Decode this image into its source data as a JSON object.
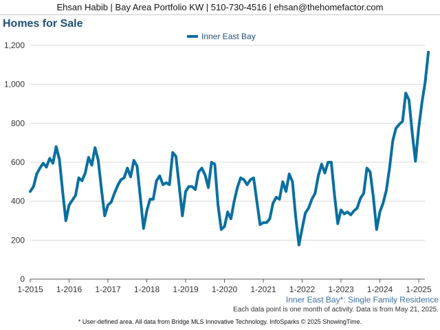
{
  "header": {
    "contact": "Ehsan Habib | Bay Area Portfolio KW | 510-730-4516 | ehsan@thehomefactor.com"
  },
  "colors": {
    "series": "#0a6fa0",
    "title": "#1f4e79",
    "subtitle": "#3a6f9e"
  },
  "chart_data": {
    "type": "line",
    "title": "Homes for Sale",
    "subtitle": "Inner East Bay*: Single Family Residence",
    "note": "Each data point is one month of activity. Data is from May 21, 2025.",
    "footer": "* User-defined area. All data from Bridge MLS Innovative Technology. InfoSparks © 2025 ShowingTime.",
    "legend": "top-center",
    "grid": true,
    "x_start": "2015-01",
    "x_tick_labels": [
      "1-2015",
      "1-2016",
      "1-2017",
      "1-2018",
      "1-2019",
      "1-2020",
      "1-2021",
      "1-2022",
      "1-2023",
      "1-2024",
      "1-2025"
    ],
    "y_ticks": [
      "0",
      "200",
      "400",
      "600",
      "800",
      "1,000",
      "1,200"
    ],
    "ylim": [
      0,
      1200
    ],
    "series": [
      {
        "name": "Inner East Bay",
        "values": [
          450,
          475,
          540,
          570,
          595,
          575,
          620,
          595,
          680,
          615,
          450,
          300,
          380,
          405,
          430,
          520,
          505,
          545,
          625,
          585,
          675,
          610,
          460,
          325,
          380,
          395,
          440,
          480,
          510,
          520,
          570,
          525,
          610,
          580,
          420,
          260,
          350,
          410,
          410,
          505,
          530,
          485,
          495,
          485,
          650,
          630,
          480,
          325,
          450,
          475,
          475,
          460,
          550,
          570,
          535,
          470,
          600,
          590,
          380,
          255,
          270,
          345,
          310,
          400,
          470,
          520,
          510,
          485,
          510,
          520,
          400,
          280,
          290,
          290,
          310,
          390,
          420,
          410,
          500,
          450,
          540,
          500,
          320,
          175,
          260,
          340,
          365,
          410,
          440,
          530,
          590,
          545,
          600,
          600,
          430,
          285,
          355,
          335,
          345,
          330,
          350,
          365,
          415,
          440,
          570,
          550,
          420,
          255,
          345,
          390,
          455,
          570,
          710,
          775,
          795,
          810,
          955,
          920,
          750,
          605,
          775,
          905,
          1010,
          1165
        ]
      }
    ]
  }
}
